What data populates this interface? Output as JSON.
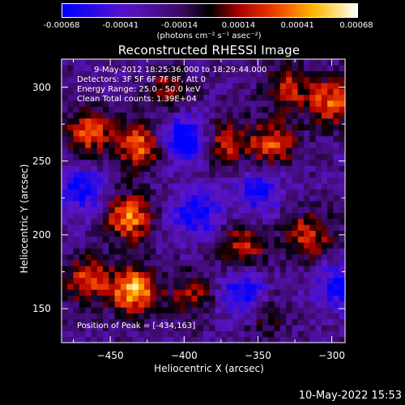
{
  "colorbar": {
    "ticks": [
      "-0.00068",
      "-0.00041",
      "-0.00014",
      "0.00014",
      "0.00041",
      "0.00068"
    ],
    "units": "(photons cm⁻² s⁻¹ asec⁻²)"
  },
  "chart_data": {
    "type": "heatmap",
    "title": "Reconstructed RHESSI Image",
    "xlabel": "Heliocentric X (arcsec)",
    "ylabel": "Heliocentric Y (arcsec)",
    "xlim": [
      -483,
      -291
    ],
    "ylim": [
      127,
      319
    ],
    "x_ticks": [
      -450,
      -400,
      -350,
      -300
    ],
    "y_ticks": [
      150,
      200,
      250,
      300
    ],
    "color_range": [
      -0.00068,
      0.00068
    ],
    "peak_position": [
      -434,
      163
    ],
    "annotations": [
      "9-May-2012 18:25:36.000  to 18:29:44.000",
      "Detectors: 3F 5F 6F 7F 8F, Att 0",
      "Energy Range: 25.0 - 50.0 keV",
      "Clean      Total counts: 1.39E+04"
    ],
    "peak_label": "Position of Peak = [-434,163]",
    "bright_regions": [
      {
        "x": -434,
        "y": 163,
        "value": 0.00068
      },
      {
        "x": -438,
        "y": 212,
        "value": 0.00058
      },
      {
        "x": -430,
        "y": 260,
        "value": 0.00052
      },
      {
        "x": -464,
        "y": 270,
        "value": 0.00045
      },
      {
        "x": -466,
        "y": 170,
        "value": 0.00042
      },
      {
        "x": -372,
        "y": 262,
        "value": 0.0004
      },
      {
        "x": -360,
        "y": 192,
        "value": 0.00035
      },
      {
        "x": -340,
        "y": 262,
        "value": 0.00044
      },
      {
        "x": -300,
        "y": 290,
        "value": 0.0005
      },
      {
        "x": -316,
        "y": 200,
        "value": 0.0004
      },
      {
        "x": -330,
        "y": 300,
        "value": 0.00034
      },
      {
        "x": -410,
        "y": 300,
        "value": 0.00026
      },
      {
        "x": -395,
        "y": 160,
        "value": 0.00028
      },
      {
        "x": -345,
        "y": 145,
        "value": 0.00018
      }
    ],
    "dark_regions": [
      {
        "x": -400,
        "y": 265,
        "value": -0.0006
      },
      {
        "x": -392,
        "y": 215,
        "value": -0.0005
      },
      {
        "x": -360,
        "y": 160,
        "value": -0.0005
      },
      {
        "x": -470,
        "y": 230,
        "value": -0.00045
      },
      {
        "x": -350,
        "y": 230,
        "value": -0.00038
      },
      {
        "x": -295,
        "y": 165,
        "value": -0.00042
      }
    ]
  },
  "timestamp": "10-May-2022 15:53"
}
